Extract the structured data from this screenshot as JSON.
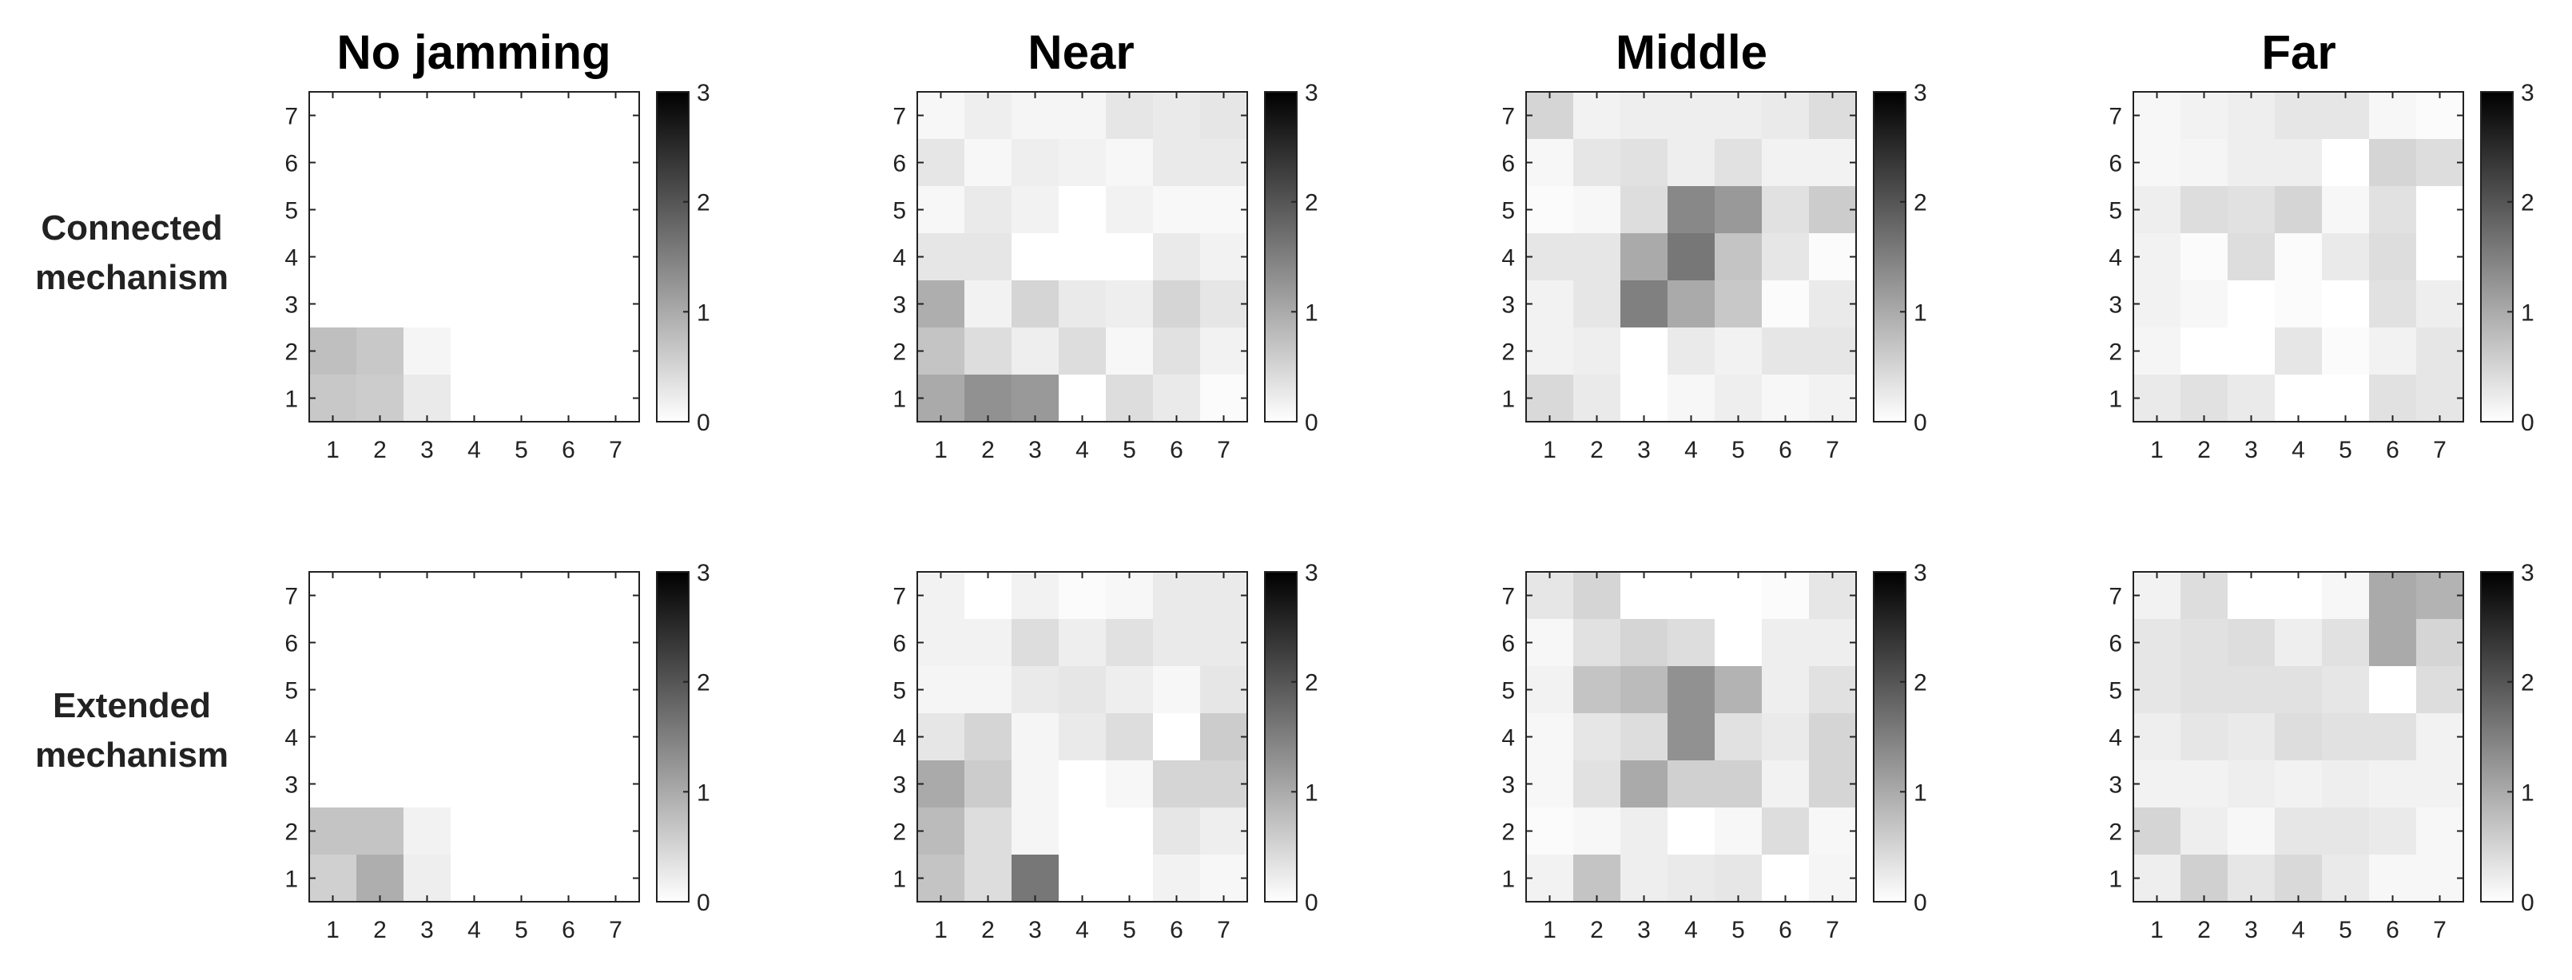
{
  "chart_data": {
    "type": "heatmap",
    "colormap": "gray (white = 0, black = 3)",
    "colorbar": {
      "min": 0,
      "max": 3,
      "ticks": [
        "0",
        "1",
        "2",
        "3"
      ]
    },
    "x_ticks": [
      "1",
      "2",
      "3",
      "4",
      "5",
      "6",
      "7"
    ],
    "y_ticks": [
      "1",
      "2",
      "3",
      "4",
      "5",
      "6",
      "7"
    ],
    "column_titles": [
      "No jamming",
      "Near",
      "Middle",
      "Far"
    ],
    "row_labels": [
      {
        "line1": "Connected",
        "line2": "mechanism"
      },
      {
        "line1": "Extended",
        "line2": "mechanism"
      }
    ],
    "note": "Each matrix lists rows from y=7 (top) to y=1 (bottom), columns x=1..7. Values estimated from grayscale.",
    "panels": [
      {
        "row": "Connected mechanism",
        "column": "No jamming",
        "values": [
          [
            0,
            0,
            0,
            0,
            0,
            0,
            0
          ],
          [
            0,
            0,
            0,
            0,
            0,
            0,
            0
          ],
          [
            0,
            0,
            0,
            0,
            0,
            0,
            0
          ],
          [
            0,
            0,
            0,
            0,
            0,
            0,
            0
          ],
          [
            0,
            0,
            0,
            0,
            0,
            0,
            0
          ],
          [
            0.75,
            0.65,
            0.12,
            0,
            0,
            0,
            0
          ],
          [
            0.65,
            0.6,
            0.25,
            0,
            0,
            0,
            0
          ]
        ]
      },
      {
        "row": "Connected mechanism",
        "column": "Near",
        "values": [
          [
            0.1,
            0.2,
            0.12,
            0.12,
            0.3,
            0.25,
            0.3
          ],
          [
            0.3,
            0.1,
            0.2,
            0.15,
            0.1,
            0.25,
            0.25
          ],
          [
            0.1,
            0.25,
            0.15,
            0,
            0.15,
            0.08,
            0.08
          ],
          [
            0.3,
            0.3,
            0,
            0,
            0,
            0.25,
            0.15
          ],
          [
            0.95,
            0.15,
            0.5,
            0.25,
            0.2,
            0.5,
            0.3
          ],
          [
            0.7,
            0.4,
            0.2,
            0.4,
            0.1,
            0.35,
            0.15
          ],
          [
            1.0,
            1.3,
            1.2,
            0,
            0.4,
            0.25,
            0.05
          ]
        ]
      },
      {
        "row": "Connected mechanism",
        "column": "Middle",
        "values": [
          [
            0.5,
            0.15,
            0.2,
            0.2,
            0.2,
            0.25,
            0.4
          ],
          [
            0.1,
            0.3,
            0.35,
            0.2,
            0.35,
            0.15,
            0.15
          ],
          [
            0.05,
            0.1,
            0.4,
            1.4,
            1.2,
            0.35,
            0.6
          ],
          [
            0.3,
            0.3,
            1.0,
            1.6,
            0.7,
            0.3,
            0.05
          ],
          [
            0.15,
            0.3,
            1.5,
            1.0,
            0.65,
            0.05,
            0.25
          ],
          [
            0.15,
            0.2,
            0,
            0.25,
            0.15,
            0.3,
            0.3
          ],
          [
            0.45,
            0.25,
            0,
            0.1,
            0.2,
            0.1,
            0.15
          ]
        ]
      },
      {
        "row": "Connected mechanism",
        "column": "Far",
        "values": [
          [
            0.1,
            0.15,
            0.2,
            0.3,
            0.3,
            0.1,
            0.05
          ],
          [
            0.1,
            0.12,
            0.2,
            0.2,
            0,
            0.5,
            0.4
          ],
          [
            0.2,
            0.4,
            0.35,
            0.5,
            0.1,
            0.35,
            0
          ],
          [
            0.15,
            0.05,
            0.4,
            0.05,
            0.25,
            0.4,
            0
          ],
          [
            0.15,
            0.1,
            0,
            0.05,
            0,
            0.35,
            0.2
          ],
          [
            0.12,
            0,
            0,
            0.3,
            0.05,
            0.15,
            0.3
          ],
          [
            0.25,
            0.35,
            0.25,
            0,
            0,
            0.35,
            0.3
          ]
        ]
      },
      {
        "row": "Extended mechanism",
        "column": "No jamming",
        "values": [
          [
            0,
            0,
            0,
            0,
            0,
            0,
            0
          ],
          [
            0,
            0,
            0,
            0,
            0,
            0,
            0
          ],
          [
            0,
            0,
            0,
            0,
            0,
            0,
            0
          ],
          [
            0,
            0,
            0,
            0,
            0,
            0,
            0
          ],
          [
            0,
            0,
            0,
            0,
            0,
            0,
            0
          ],
          [
            0.7,
            0.7,
            0.15,
            0,
            0,
            0,
            0
          ],
          [
            0.55,
            0.95,
            0.2,
            0,
            0,
            0,
            0
          ]
        ]
      },
      {
        "row": "Extended mechanism",
        "column": "Near",
        "values": [
          [
            0.15,
            0,
            0.15,
            0.05,
            0.1,
            0.25,
            0.25
          ],
          [
            0.15,
            0.15,
            0.4,
            0.2,
            0.35,
            0.25,
            0.25
          ],
          [
            0.12,
            0.12,
            0.25,
            0.3,
            0.2,
            0.1,
            0.3
          ],
          [
            0.3,
            0.5,
            0.12,
            0.25,
            0.4,
            0,
            0.6
          ],
          [
            1.0,
            0.6,
            0.12,
            0,
            0.1,
            0.5,
            0.5
          ],
          [
            0.8,
            0.4,
            0.12,
            0,
            0,
            0.3,
            0.2
          ],
          [
            0.7,
            0.4,
            1.6,
            0,
            0,
            0.15,
            0.1
          ]
        ]
      },
      {
        "row": "Extended mechanism",
        "column": "Middle",
        "values": [
          [
            0.3,
            0.5,
            0,
            0,
            0,
            0.05,
            0.3
          ],
          [
            0.1,
            0.35,
            0.5,
            0.4,
            0,
            0.2,
            0.2
          ],
          [
            0.15,
            0.7,
            0.8,
            1.3,
            0.9,
            0.2,
            0.35
          ],
          [
            0.1,
            0.3,
            0.4,
            1.3,
            0.35,
            0.25,
            0.5
          ],
          [
            0.1,
            0.35,
            1.0,
            0.55,
            0.55,
            0.15,
            0.5
          ],
          [
            0.05,
            0.1,
            0.2,
            0,
            0.1,
            0.4,
            0.1
          ],
          [
            0.15,
            0.7,
            0.2,
            0.25,
            0.3,
            0,
            0.12
          ]
        ]
      },
      {
        "row": "Extended mechanism",
        "column": "Far",
        "values": [
          [
            0.15,
            0.4,
            0,
            0,
            0.1,
            1.0,
            0.9
          ],
          [
            0.3,
            0.35,
            0.4,
            0.2,
            0.35,
            1.0,
            0.5
          ],
          [
            0.3,
            0.35,
            0.35,
            0.35,
            0.3,
            0,
            0.4
          ],
          [
            0.2,
            0.3,
            0.25,
            0.4,
            0.35,
            0.35,
            0.15
          ],
          [
            0.15,
            0.15,
            0.2,
            0.15,
            0.2,
            0.15,
            0.15
          ],
          [
            0.5,
            0.2,
            0.1,
            0.3,
            0.3,
            0.25,
            0.1
          ],
          [
            0.2,
            0.55,
            0.3,
            0.45,
            0.25,
            0.1,
            0.1
          ]
        ]
      }
    ]
  }
}
